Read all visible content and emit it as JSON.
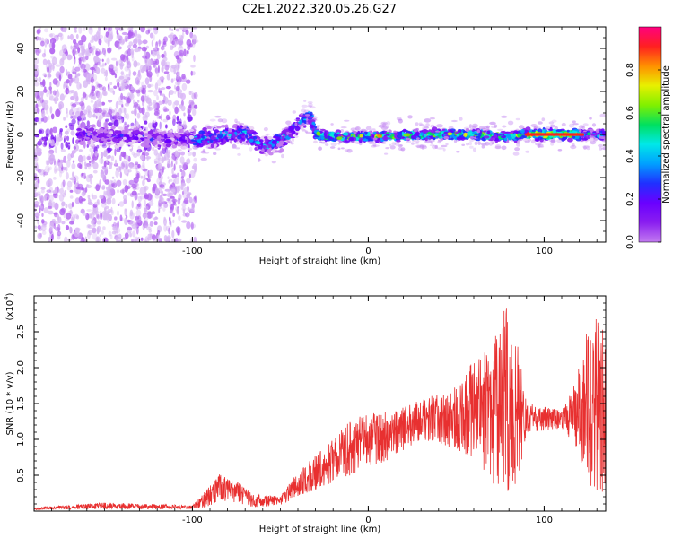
{
  "title": "C2E1.2022.320.05.26.G27",
  "colors": {
    "snr_line": "#e83030",
    "colormap": [
      "#ffffff",
      "#ead2f4",
      "#c27af0",
      "#8a1ef0",
      "#6a00ff",
      "#2030ff",
      "#00a0ff",
      "#00e8e8",
      "#00e060",
      "#80f000",
      "#e8f000",
      "#ff9000",
      "#ff2020",
      "#ff0080"
    ]
  },
  "chart_data": [
    {
      "type": "heatmap",
      "title": "C2E1.2022.320.05.26.G27",
      "xlabel": "Height of straight line (km)",
      "ylabel": "Frequency (Hz)",
      "xlim": [
        -190,
        135
      ],
      "ylim": [
        -50,
        50
      ],
      "x_ticks": [
        -100,
        0,
        100
      ],
      "y_ticks": [
        -40,
        -20,
        0,
        20,
        40
      ],
      "colorbar": {
        "label": "Normalized spectral amplitude",
        "range": [
          0,
          1
        ],
        "ticks": [
          0.0,
          0.2,
          0.4,
          0.6,
          0.8
        ]
      },
      "ridge_frequency_hz": [
        {
          "x": -160,
          "y": 0
        },
        {
          "x": -120,
          "y": -2
        },
        {
          "x": -100,
          "y": -2
        },
        {
          "x": -85,
          "y": -1
        },
        {
          "x": -70,
          "y": 1
        },
        {
          "x": -60,
          "y": -6
        },
        {
          "x": -50,
          "y": -3
        },
        {
          "x": -40,
          "y": 4
        },
        {
          "x": -33,
          "y": 10
        },
        {
          "x": -30,
          "y": 0
        },
        {
          "x": -20,
          "y": -1
        },
        {
          "x": 0,
          "y": -1
        },
        {
          "x": 40,
          "y": 0
        },
        {
          "x": 60,
          "y": 0
        },
        {
          "x": 80,
          "y": -1
        },
        {
          "x": 90,
          "y": 0
        },
        {
          "x": 110,
          "y": 0
        },
        {
          "x": 135,
          "y": 0
        }
      ]
    },
    {
      "type": "line",
      "xlabel": "Height of straight line (km)",
      "ylabel": "SNR (10 * v/v)",
      "y_multiplier_label": "(x10^4)",
      "y_multiplier_base": "(x10",
      "y_multiplier_exp": "4",
      "y_multiplier_close": ")",
      "xlim": [
        -190,
        135
      ],
      "ylim": [
        0,
        3.0
      ],
      "x_ticks": [
        -100,
        0,
        100
      ],
      "y_ticks": [
        0.5,
        1.0,
        1.5,
        2.0,
        2.5
      ],
      "series": [
        {
          "envelope": [
            {
              "x": -190,
              "low": 0.02,
              "high": 0.05
            },
            {
              "x": -150,
              "low": 0.03,
              "high": 0.12
            },
            {
              "x": -100,
              "low": 0.03,
              "high": 0.08
            },
            {
              "x": -92,
              "low": 0.05,
              "high": 0.3
            },
            {
              "x": -85,
              "low": 0.15,
              "high": 0.52
            },
            {
              "x": -75,
              "low": 0.12,
              "high": 0.42
            },
            {
              "x": -65,
              "low": 0.05,
              "high": 0.25
            },
            {
              "x": -50,
              "low": 0.08,
              "high": 0.2
            },
            {
              "x": -40,
              "low": 0.2,
              "high": 0.55
            },
            {
              "x": -30,
              "low": 0.3,
              "high": 0.8
            },
            {
              "x": -20,
              "low": 0.4,
              "high": 1.0
            },
            {
              "x": -10,
              "low": 0.5,
              "high": 1.3
            },
            {
              "x": 0,
              "low": 0.6,
              "high": 1.35
            },
            {
              "x": 10,
              "low": 0.7,
              "high": 1.4
            },
            {
              "x": 20,
              "low": 0.85,
              "high": 1.45
            },
            {
              "x": 30,
              "low": 1.0,
              "high": 1.55
            },
            {
              "x": 40,
              "low": 0.95,
              "high": 1.65
            },
            {
              "x": 50,
              "low": 0.85,
              "high": 1.75
            },
            {
              "x": 60,
              "low": 0.75,
              "high": 2.1
            },
            {
              "x": 70,
              "low": 0.4,
              "high": 2.3
            },
            {
              "x": 78,
              "low": 0.2,
              "high": 2.9
            },
            {
              "x": 85,
              "low": 0.4,
              "high": 2.3
            },
            {
              "x": 90,
              "low": 1.1,
              "high": 1.55
            },
            {
              "x": 110,
              "low": 1.15,
              "high": 1.4
            },
            {
              "x": 118,
              "low": 0.9,
              "high": 1.8
            },
            {
              "x": 125,
              "low": 0.4,
              "high": 2.6
            },
            {
              "x": 131,
              "low": 0.2,
              "high": 2.9
            },
            {
              "x": 135,
              "low": 0.3,
              "high": 2.3
            }
          ]
        }
      ]
    }
  ]
}
